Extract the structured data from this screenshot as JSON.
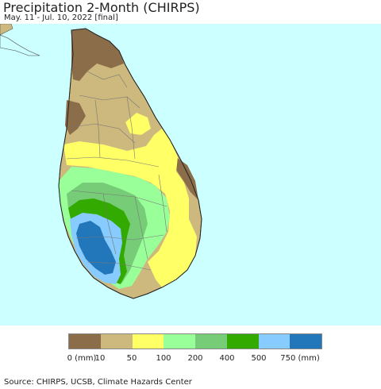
{
  "header": {
    "title": "Precipitation 2-Month (CHIRPS)",
    "subtitle": "May. 11 - Jul. 10, 2022 [final]"
  },
  "map": {
    "ocean_color": "#ccffff",
    "land_outside_color": "#e8e8e8",
    "region": "Sri Lanka"
  },
  "legend": {
    "colors": [
      "#8b6d4a",
      "#cdb97e",
      "#ffff66",
      "#99ff99",
      "#77cc77",
      "#33aa00",
      "#88ccff",
      "#2277bb"
    ],
    "labels": [
      "0 (mm)",
      "10",
      "50",
      "100",
      "200",
      "400",
      "500",
      "750 (mm)"
    ]
  },
  "footer": {
    "source": "Source: CHIRPS, UCSB, Climate Hazards Center"
  }
}
